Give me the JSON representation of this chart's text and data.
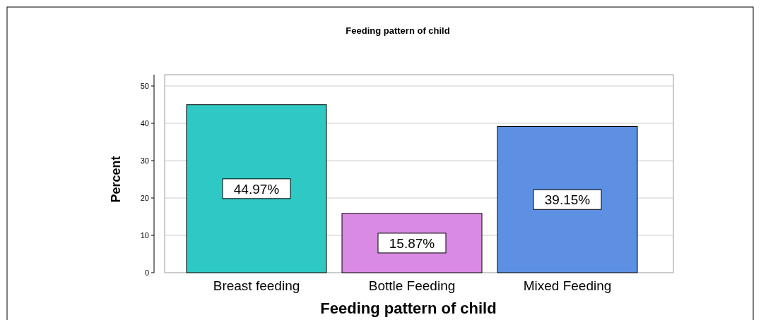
{
  "chart_data": {
    "type": "bar",
    "title": "Feeding pattern of child",
    "xlabel": "Feeding pattern of child",
    "ylabel": "Percent",
    "categories": [
      "Breast feeding",
      "Bottle Feeding",
      "Mixed Feeding"
    ],
    "values": [
      44.97,
      15.87,
      39.15
    ],
    "colors": [
      "#2ec9c4",
      "#d98be3",
      "#5d8fe3"
    ],
    "value_labels": [
      "44.97%",
      "15.87%",
      "39.15%"
    ],
    "ylim": [
      0,
      50
    ],
    "yticks": [
      0,
      10,
      20,
      30,
      40,
      50
    ],
    "grid": "y"
  }
}
